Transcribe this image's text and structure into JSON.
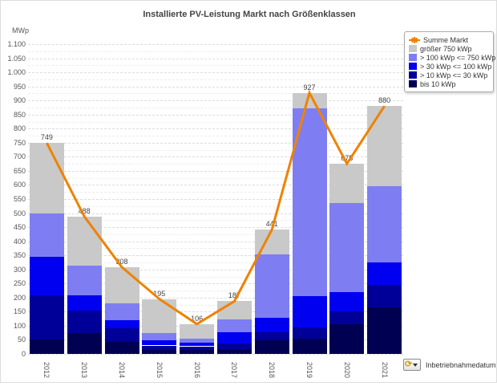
{
  "title": "Installierte PV-Leistung Markt nach Größenklassen",
  "y_axis_unit": "MWp",
  "footer": {
    "label": "Inbetriebnahmedatum",
    "icon": "cycle-icon"
  },
  "colors": {
    "line": "#ef8200",
    "grid_major": "#dcdcdc",
    "grid_minor": "#ededed",
    "text": "#555555"
  },
  "chart_data": {
    "type": "bar",
    "subtype": "stacked-bars-with-line-overlay",
    "title": "Installierte PV-Leistung Markt nach Größenklassen",
    "xlabel": "Inbetriebnahmedatum",
    "ylabel": "MWp",
    "categories": [
      "2012",
      "2013",
      "2014",
      "2015",
      "2016",
      "2017",
      "2018",
      "2019",
      "2020",
      "2021"
    ],
    "series": [
      {
        "name": "bis 10 kWp",
        "color": "#000052",
        "values": [
          51,
          74,
          43,
          14,
          13,
          17,
          48,
          55,
          105,
          165
        ]
      },
      {
        "name": "> 10 kWp <= 30 kWp",
        "color": "#000099",
        "values": [
          158,
          80,
          48,
          16,
          14,
          20,
          29,
          40,
          45,
          80
        ]
      },
      {
        "name": "> 30 kWp <= 100 kWp",
        "color": "#0000f0",
        "values": [
          137,
          55,
          29,
          19,
          12,
          40,
          52,
          110,
          70,
          80
        ]
      },
      {
        "name": "> 100 kWp <= 750 kWp",
        "color": "#7e7ef2",
        "values": [
          154,
          105,
          60,
          25,
          14,
          46,
          224,
          666,
          315,
          270
        ]
      },
      {
        "name": "größer 750 kWp",
        "color": "#c9c9c9",
        "values": [
          249,
          174,
          128,
          121,
          53,
          64,
          88,
          56,
          140,
          285
        ]
      }
    ],
    "line_series": {
      "name": "Summe Markt",
      "color": "#ef8200",
      "values": [
        749,
        488,
        308,
        195,
        106,
        187,
        441,
        927,
        675,
        880
      ]
    },
    "totals_labels": [
      "749",
      "488",
      "308",
      "195",
      "106",
      "187",
      "441",
      "927",
      "675",
      "880"
    ],
    "ylim": [
      0,
      1100
    ],
    "y_major_step": 50,
    "y_minor_step": 25,
    "y_tick_labels": [
      "0",
      "50",
      "100",
      "150",
      "200",
      "250",
      "300",
      "350",
      "400",
      "450",
      "500",
      "550",
      "600",
      "650",
      "700",
      "750",
      "800",
      "850",
      "900",
      "950",
      "1.000",
      "1.050",
      "1.100"
    ],
    "grid": "dashed",
    "legend_position": "top-right",
    "legend_order": [
      "Summe Markt",
      "größer 750 kWp",
      "> 100 kWp <= 750 kWp",
      "> 30 kWp <= 100 kWp",
      "> 10 kWp <= 30 kWp",
      "bis 10 kWp"
    ]
  }
}
